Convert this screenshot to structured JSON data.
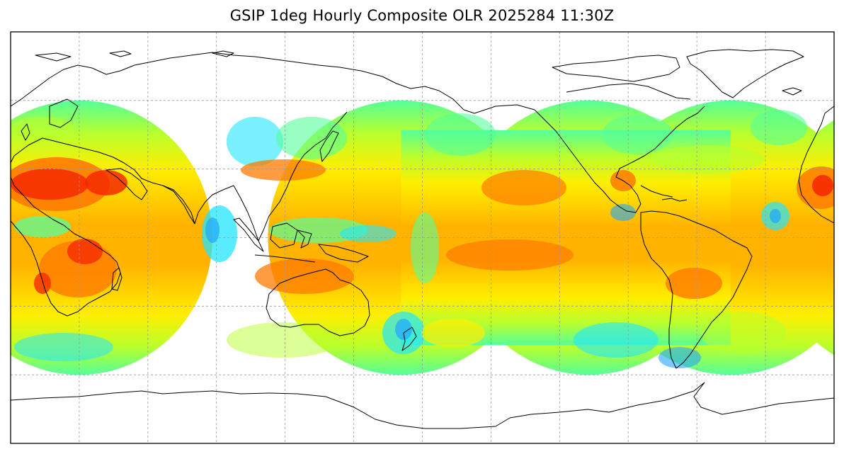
{
  "title": "GSIP 1deg Hourly Composite OLR 2025284 11:30Z",
  "map": {
    "projection": "equirectangular",
    "lon_range": [
      -30,
      330
    ],
    "lat_range": [
      -90,
      90
    ],
    "gridline_interval_deg": 30,
    "gridlines": "dashed-gray",
    "coastlines": "black",
    "no_data_color": "#ffffff",
    "colormap": [
      "#0a55ff",
      "#1fa6ff",
      "#22e6ff",
      "#55ff99",
      "#b8ff2e",
      "#ffee00",
      "#ffb300",
      "#ff7a00",
      "#f52a00"
    ]
  },
  "satellite_coverage": [
    {
      "center_lon": 0
    },
    {
      "center_lon": 140.7
    },
    {
      "center_lon": 222.8
    },
    {
      "center_lon": 284.8
    },
    {
      "center_lon": 360
    }
  ]
}
